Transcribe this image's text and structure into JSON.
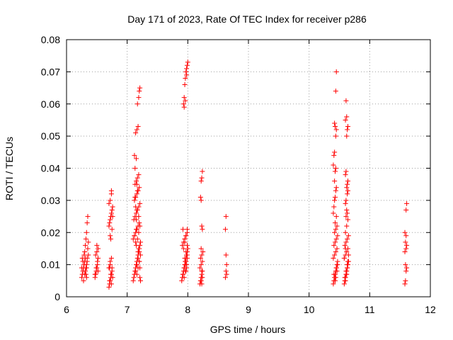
{
  "chart_data": {
    "type": "scatter",
    "title": "Day 171 of 2023, Rate Of TEC Index for receiver p286",
    "xlabel": "GPS time / hours",
    "ylabel": "ROTI / TECUs",
    "xlim": [
      6,
      12
    ],
    "ylim": [
      0,
      0.08
    ],
    "x_ticks": [
      6,
      7,
      8,
      9,
      10,
      11,
      12
    ],
    "x_tick_labels": [
      "6",
      "7",
      "8",
      "9",
      "10",
      "11",
      "12"
    ],
    "y_ticks": [
      0,
      0.01,
      0.02,
      0.03,
      0.04,
      0.05,
      0.06,
      0.07,
      0.08
    ],
    "y_tick_labels": [
      "0",
      "0.01",
      "0.02",
      "0.03",
      "0.04",
      "0.05",
      "0.06",
      "0.07",
      "0.08"
    ],
    "grid": true,
    "marker": "+",
    "marker_color": "#ff0000",
    "series": [
      {
        "name": "ROTI",
        "x": [
          6.25,
          6.26,
          6.27,
          6.28,
          6.29,
          6.3,
          6.31,
          6.32,
          6.33,
          6.25,
          6.27,
          6.29,
          6.31,
          6.33,
          6.26,
          6.28,
          6.3,
          6.32,
          6.34,
          6.3,
          6.31,
          6.32,
          6.33,
          6.34,
          6.35,
          6.36,
          6.33,
          6.34,
          6.35,
          6.36,
          6.47,
          6.48,
          6.49,
          6.5,
          6.51,
          6.52,
          6.48,
          6.5,
          6.52,
          6.47,
          6.49,
          6.51,
          6.5,
          6.52,
          6.7,
          6.71,
          6.72,
          6.73,
          6.74,
          6.75,
          6.7,
          6.72,
          6.74,
          6.76,
          6.71,
          6.73,
          6.75,
          6.72,
          6.74,
          6.7,
          6.71,
          6.72,
          6.73,
          6.74,
          6.75,
          6.76,
          6.7,
          6.72,
          6.74,
          6.73,
          6.75,
          6.76,
          6.74,
          6.72,
          6.71,
          7.1,
          7.11,
          7.12,
          7.13,
          7.14,
          7.15,
          7.16,
          7.17,
          7.18,
          7.19,
          7.2,
          7.21,
          7.22,
          7.1,
          7.12,
          7.14,
          7.16,
          7.18,
          7.2,
          7.11,
          7.13,
          7.15,
          7.17,
          7.19,
          7.21,
          7.12,
          7.14,
          7.16,
          7.18,
          7.2,
          7.13,
          7.15,
          7.17,
          7.19,
          7.14,
          7.16,
          7.18,
          7.2,
          7.15,
          7.17,
          7.19,
          7.21,
          7.16,
          7.18,
          7.2,
          7.22,
          7.13,
          7.15,
          7.12,
          7.14,
          7.16,
          7.18,
          7.17,
          7.19,
          7.2,
          7.21,
          7.19,
          7.21,
          7.22,
          7.14,
          7.12,
          7.13,
          7.15,
          7.14,
          7.16,
          7.17,
          7.15,
          7.18,
          7.16,
          7.2,
          7.21,
          7.19,
          7.9,
          7.91,
          7.92,
          7.93,
          7.94,
          7.95,
          7.96,
          7.97,
          7.98,
          7.99,
          8.0,
          7.91,
          7.93,
          7.95,
          7.97,
          7.99,
          7.92,
          7.94,
          7.96,
          7.98,
          7.93,
          7.95,
          7.97,
          7.99,
          7.94,
          7.96,
          7.98,
          7.95,
          7.97,
          7.99,
          7.93,
          7.94,
          7.95,
          7.96,
          7.97,
          7.98,
          7.99,
          8.0,
          7.94,
          7.96,
          7.98,
          7.92,
          7.95,
          7.97,
          7.98,
          7.99,
          7.96,
          7.97,
          7.99,
          8.2,
          8.21,
          8.22,
          8.23,
          8.24,
          8.2,
          8.22,
          8.24,
          8.21,
          8.23,
          8.25,
          8.22,
          8.24,
          8.23,
          8.21,
          8.22,
          8.23,
          8.24,
          8.22,
          8.23,
          8.22,
          8.24,
          8.23,
          8.62,
          8.63,
          8.64,
          8.63,
          8.62,
          8.63,
          8.64,
          10.4,
          10.41,
          10.42,
          10.43,
          10.44,
          10.45,
          10.46,
          10.47,
          10.4,
          10.42,
          10.44,
          10.46,
          10.41,
          10.43,
          10.45,
          10.47,
          10.42,
          10.44,
          10.46,
          10.43,
          10.45,
          10.4,
          10.41,
          10.42,
          10.43,
          10.44,
          10.45,
          10.42,
          10.43,
          10.44,
          10.4,
          10.41,
          10.42,
          10.44,
          10.45,
          10.43,
          10.42,
          10.44,
          10.45,
          10.43,
          10.41,
          10.44,
          10.46,
          10.45,
          10.47,
          10.58,
          10.59,
          10.6,
          10.61,
          10.62,
          10.63,
          10.64,
          10.65,
          10.58,
          10.6,
          10.62,
          10.64,
          10.59,
          10.61,
          10.63,
          10.65,
          10.6,
          10.62,
          10.64,
          10.61,
          10.63,
          10.62,
          10.6,
          10.61,
          10.63,
          10.64,
          10.62,
          10.63,
          10.64,
          10.6,
          10.61,
          10.62,
          10.63,
          10.64,
          10.6,
          10.62,
          10.61,
          10.63,
          10.64,
          10.62,
          10.65,
          10.6,
          10.59,
          10.61,
          10.63,
          10.58,
          10.6,
          11.58,
          11.59,
          11.6,
          11.61,
          11.58,
          11.6,
          11.61,
          11.59,
          11.6,
          11.58,
          11.6,
          11.61,
          11.59
        ],
        "y": [
          0.006,
          0.007,
          0.008,
          0.009,
          0.01,
          0.011,
          0.012,
          0.007,
          0.006,
          0.009,
          0.011,
          0.013,
          0.008,
          0.01,
          0.012,
          0.005,
          0.007,
          0.009,
          0.011,
          0.014,
          0.016,
          0.018,
          0.02,
          0.023,
          0.025,
          0.013,
          0.009,
          0.012,
          0.015,
          0.017,
          0.006,
          0.007,
          0.008,
          0.009,
          0.01,
          0.012,
          0.013,
          0.014,
          0.015,
          0.007,
          0.009,
          0.011,
          0.016,
          0.008,
          0.003,
          0.004,
          0.005,
          0.006,
          0.007,
          0.008,
          0.009,
          0.01,
          0.004,
          0.006,
          0.005,
          0.007,
          0.009,
          0.011,
          0.012,
          0.022,
          0.023,
          0.024,
          0.025,
          0.026,
          0.027,
          0.028,
          0.029,
          0.03,
          0.032,
          0.018,
          0.021,
          0.025,
          0.033,
          0.019,
          0.009,
          0.005,
          0.006,
          0.007,
          0.008,
          0.009,
          0.01,
          0.011,
          0.012,
          0.013,
          0.014,
          0.015,
          0.016,
          0.017,
          0.018,
          0.019,
          0.02,
          0.021,
          0.022,
          0.023,
          0.024,
          0.025,
          0.026,
          0.027,
          0.028,
          0.029,
          0.03,
          0.031,
          0.032,
          0.033,
          0.034,
          0.035,
          0.036,
          0.037,
          0.038,
          0.008,
          0.01,
          0.012,
          0.014,
          0.016,
          0.018,
          0.02,
          0.022,
          0.007,
          0.009,
          0.011,
          0.013,
          0.04,
          0.043,
          0.044,
          0.051,
          0.052,
          0.053,
          0.06,
          0.062,
          0.064,
          0.065,
          0.015,
          0.006,
          0.005,
          0.028,
          0.019,
          0.031,
          0.024,
          0.017,
          0.027,
          0.033,
          0.021,
          0.014,
          0.035,
          0.011,
          0.009,
          0.025,
          0.005,
          0.006,
          0.007,
          0.008,
          0.009,
          0.01,
          0.011,
          0.012,
          0.013,
          0.014,
          0.015,
          0.016,
          0.017,
          0.018,
          0.019,
          0.02,
          0.007,
          0.009,
          0.011,
          0.013,
          0.015,
          0.017,
          0.019,
          0.021,
          0.006,
          0.008,
          0.01,
          0.012,
          0.014,
          0.016,
          0.06,
          0.062,
          0.066,
          0.068,
          0.07,
          0.071,
          0.072,
          0.073,
          0.059,
          0.061,
          0.069,
          0.021,
          0.018,
          0.011,
          0.009,
          0.013,
          0.01,
          0.008,
          0.012,
          0.004,
          0.005,
          0.006,
          0.007,
          0.008,
          0.009,
          0.01,
          0.011,
          0.012,
          0.013,
          0.014,
          0.015,
          0.021,
          0.022,
          0.031,
          0.036,
          0.037,
          0.039,
          0.03,
          0.004,
          0.005,
          0.006,
          0.008,
          0.006,
          0.008,
          0.01,
          0.013,
          0.021,
          0.025,
          0.007,
          0.004,
          0.005,
          0.006,
          0.007,
          0.008,
          0.009,
          0.01,
          0.011,
          0.012,
          0.013,
          0.014,
          0.015,
          0.016,
          0.017,
          0.018,
          0.019,
          0.02,
          0.021,
          0.022,
          0.023,
          0.025,
          0.026,
          0.028,
          0.03,
          0.031,
          0.033,
          0.034,
          0.036,
          0.039,
          0.04,
          0.041,
          0.044,
          0.045,
          0.05,
          0.052,
          0.053,
          0.054,
          0.064,
          0.07,
          0.005,
          0.007,
          0.006,
          0.008,
          0.009,
          0.01,
          0.004,
          0.005,
          0.006,
          0.007,
          0.008,
          0.009,
          0.01,
          0.011,
          0.012,
          0.013,
          0.014,
          0.015,
          0.016,
          0.017,
          0.018,
          0.019,
          0.02,
          0.022,
          0.024,
          0.025,
          0.026,
          0.027,
          0.029,
          0.03,
          0.032,
          0.033,
          0.034,
          0.035,
          0.036,
          0.038,
          0.039,
          0.05,
          0.052,
          0.053,
          0.055,
          0.056,
          0.061,
          0.009,
          0.011,
          0.007,
          0.013,
          0.005,
          0.006,
          0.008,
          0.01,
          0.012,
          0.015,
          0.004,
          0.005,
          0.008,
          0.009,
          0.014,
          0.015,
          0.016,
          0.017,
          0.019,
          0.02,
          0.027,
          0.029,
          0.01
        ]
      }
    ]
  }
}
